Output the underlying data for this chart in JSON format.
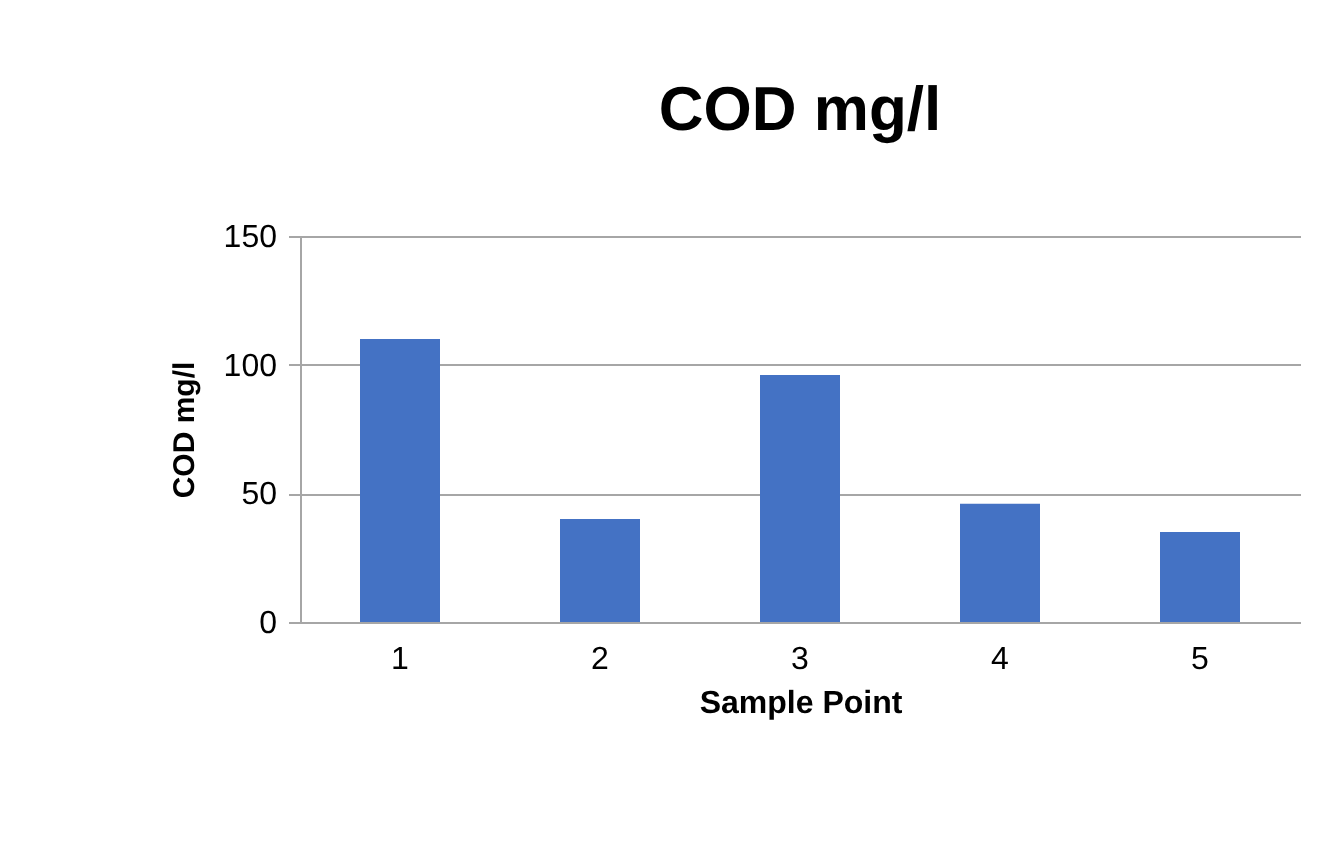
{
  "chart_data": {
    "type": "bar",
    "title": "COD mg/l",
    "xlabel": "Sample Point",
    "ylabel": "COD mg/l",
    "categories": [
      "1",
      "2",
      "3",
      "4",
      "5"
    ],
    "values": [
      110,
      40,
      96,
      46,
      35
    ],
    "color": "#4472c4",
    "ylim": [
      0,
      150
    ],
    "yticks": [
      0,
      50,
      100,
      150
    ],
    "grid": "y"
  }
}
